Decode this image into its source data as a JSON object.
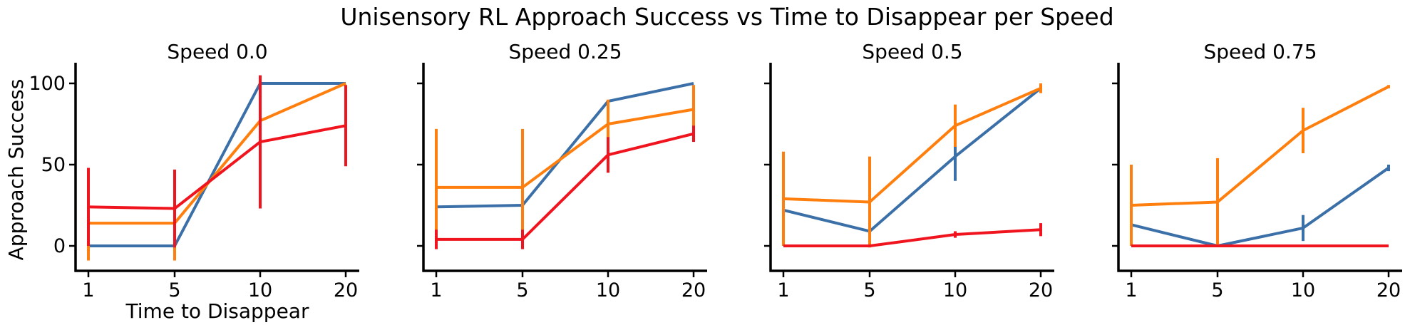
{
  "figure": {
    "title": "Unisensory RL Approach Success vs Time to Disappear per Speed",
    "xlabel": "Time to Disappear",
    "ylabel": "Approach Success"
  },
  "chart_data": [
    {
      "type": "line",
      "title": "Speed 0.0",
      "categories": [
        "1",
        "5",
        "10",
        "20"
      ],
      "yticks": [
        0,
        50,
        100
      ],
      "ylim": [
        -15,
        112
      ],
      "series": [
        {
          "color": "#3a6fa8",
          "values": [
            0,
            0,
            100,
            100
          ],
          "err": [
            0,
            0,
            0,
            0
          ]
        },
        {
          "color": "#ff7f0e",
          "values": [
            14,
            14,
            77,
            100
          ],
          "err": [
            23,
            23,
            0,
            0
          ]
        },
        {
          "color": "#f0141e",
          "values": [
            24,
            23,
            64,
            74
          ],
          "err": [
            24,
            24,
            41,
            25
          ]
        }
      ]
    },
    {
      "type": "line",
      "title": "Speed 0.25",
      "categories": [
        "1",
        "5",
        "10",
        "20"
      ],
      "yticks": [
        0,
        50,
        100
      ],
      "ylim": [
        -15,
        112
      ],
      "series": [
        {
          "color": "#3a6fa8",
          "values": [
            24,
            25,
            89,
            100
          ],
          "err": [
            0,
            0,
            0,
            0
          ]
        },
        {
          "color": "#ff7f0e",
          "values": [
            36,
            36,
            75,
            84
          ],
          "err": [
            36,
            36,
            15,
            15
          ]
        },
        {
          "color": "#f0141e",
          "values": [
            4,
            4,
            56,
            69
          ],
          "err": [
            6,
            6,
            11,
            5
          ]
        }
      ]
    },
    {
      "type": "line",
      "title": "Speed 0.5",
      "categories": [
        "1",
        "5",
        "10",
        "20"
      ],
      "yticks": [
        0,
        50,
        100
      ],
      "ylim": [
        -15,
        112
      ],
      "series": [
        {
          "color": "#3a6fa8",
          "values": [
            22,
            9,
            55,
            97
          ],
          "err": [
            0,
            0,
            15,
            0
          ]
        },
        {
          "color": "#ff7f0e",
          "values": [
            29,
            27,
            74,
            97
          ],
          "err": [
            29,
            28,
            13,
            3
          ]
        },
        {
          "color": "#f0141e",
          "values": [
            0,
            0,
            7,
            10
          ],
          "err": [
            0,
            0,
            2,
            4
          ]
        }
      ]
    },
    {
      "type": "line",
      "title": "Speed 0.75",
      "categories": [
        "1",
        "5",
        "10",
        "20"
      ],
      "yticks": [
        0,
        50,
        100
      ],
      "ylim": [
        -15,
        112
      ],
      "series": [
        {
          "color": "#3a6fa8",
          "values": [
            13,
            0,
            11,
            48
          ],
          "err": [
            8,
            0,
            8,
            2
          ]
        },
        {
          "color": "#ff7f0e",
          "values": [
            25,
            27,
            71,
            98
          ],
          "err": [
            25,
            27,
            14,
            1
          ]
        },
        {
          "color": "#f0141e",
          "values": [
            0,
            0,
            0,
            0
          ],
          "err": [
            0,
            0,
            0,
            0
          ]
        }
      ]
    }
  ]
}
